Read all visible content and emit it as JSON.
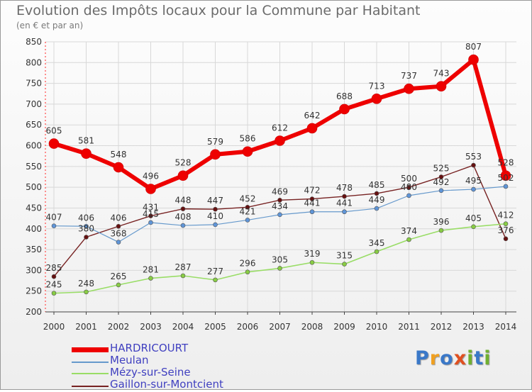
{
  "title": "Evolution des Impôts locaux pour la Commune par Habitant",
  "subtitle": "(en € et par an)",
  "logo": {
    "text": "Proxiti",
    "letters": [
      "P",
      "r",
      "o",
      "x",
      "i",
      "t",
      "i"
    ],
    "colors": [
      "#3a78c8",
      "#f0a020",
      "#3a78c8",
      "#e05020",
      "#70b030",
      "#3a78c8",
      "#70b030"
    ]
  },
  "chart_data": {
    "type": "line",
    "title": "Evolution des Impôts locaux pour la Commune par Habitant",
    "subtitle": "(en € et par an)",
    "xlabel": "",
    "ylabel": "",
    "ylim": [
      200,
      850
    ],
    "yticks": [
      200,
      250,
      300,
      350,
      400,
      450,
      500,
      550,
      600,
      650,
      700,
      750,
      800,
      850
    ],
    "grid": true,
    "legend_position": "bottom-left",
    "x": [
      "2000",
      "2001",
      "2002",
      "2003",
      "2004",
      "2005",
      "2006",
      "2007",
      "2008",
      "2009",
      "2010",
      "2011",
      "2012",
      "2013",
      "2014"
    ],
    "series": [
      {
        "name": "HARDRICOURT",
        "color": "#ee0000",
        "marker": "#ee0000",
        "values": [
          605,
          581,
          548,
          496,
          528,
          579,
          586,
          612,
          642,
          688,
          713,
          737,
          743,
          807,
          528
        ]
      },
      {
        "name": "Meulan",
        "color": "#6699cc",
        "marker": "#5f95d8",
        "values": [
          407,
          406,
          368,
          415,
          408,
          410,
          421,
          434,
          441,
          441,
          449,
          480,
          492,
          495,
          502
        ]
      },
      {
        "name": "Mézy-sur-Seine",
        "color": "#99dd66",
        "marker": "#88cc44",
        "values": [
          245,
          248,
          265,
          281,
          287,
          277,
          296,
          305,
          319,
          315,
          345,
          374,
          396,
          405,
          412
        ]
      },
      {
        "name": "Gaillon-sur-Montcient",
        "color": "#772222",
        "marker": "#661111",
        "values": [
          285,
          380,
          406,
          431,
          448,
          447,
          452,
          469,
          472,
          478,
          485,
          500,
          525,
          553,
          376
        ]
      }
    ]
  }
}
